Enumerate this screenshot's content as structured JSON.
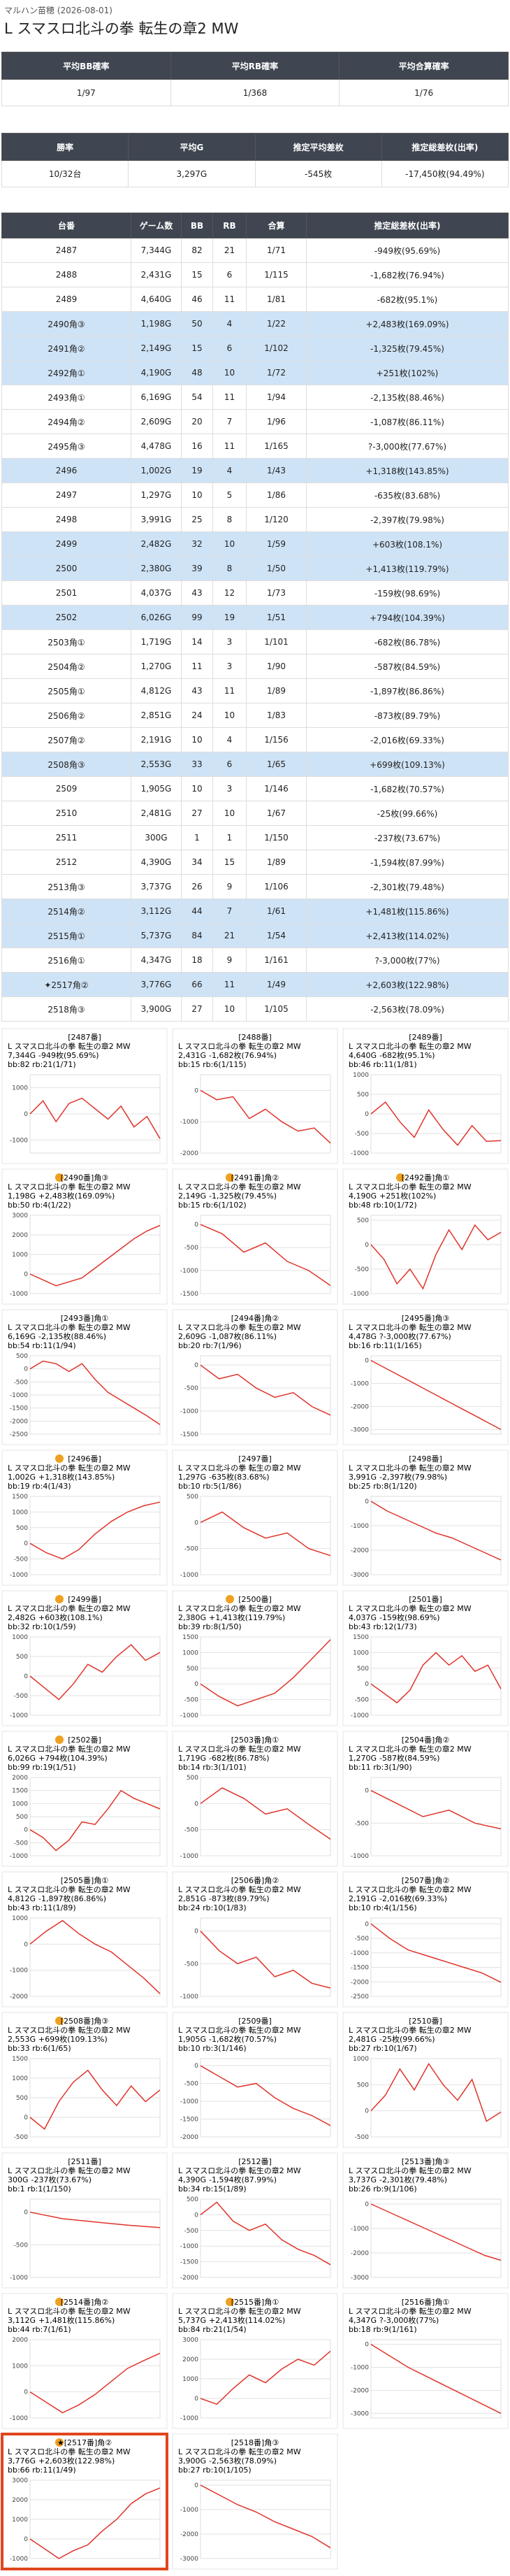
{
  "header": {
    "store": "マルハン苗穂 (2026-08-01)",
    "title": "L スマスロ北斗の拳 転生の章2 MW"
  },
  "table1": {
    "headers": [
      "平均BB確率",
      "平均RB確率",
      "平均合算確率"
    ],
    "row": [
      "1/97",
      "1/368",
      "1/76"
    ]
  },
  "table2": {
    "headers": [
      "勝率",
      "平均G",
      "推定平均差枚",
      "推定総差枚(出率)"
    ],
    "row": [
      "10/32台",
      "3,297G",
      "-545枚",
      "-17,450枚(94.49%)"
    ]
  },
  "table3": {
    "headers": [
      "台番",
      "ゲーム数",
      "BB",
      "RB",
      "合算",
      "推定総差枚(出率)"
    ],
    "rows": [
      {
        "cells": [
          "2487",
          "7,344G",
          82,
          21,
          "1/71",
          "-949枚(95.69%)"
        ],
        "highlight": false
      },
      {
        "cells": [
          "2488",
          "2,431G",
          15,
          6,
          "1/115",
          "-1,682枚(76.94%)"
        ],
        "highlight": false
      },
      {
        "cells": [
          "2489",
          "4,640G",
          46,
          11,
          "1/81",
          "-682枚(95.1%)"
        ],
        "highlight": false
      },
      {
        "cells": [
          "2490角③",
          "1,198G",
          50,
          4,
          "1/22",
          "+2,483枚(169.09%)"
        ],
        "highlight": true
      },
      {
        "cells": [
          "2491角②",
          "2,149G",
          15,
          6,
          "1/102",
          "-1,325枚(79.45%)"
        ],
        "highlight": true
      },
      {
        "cells": [
          "2492角①",
          "4,190G",
          48,
          10,
          "1/72",
          "+251枚(102%)"
        ],
        "highlight": true
      },
      {
        "cells": [
          "2493角①",
          "6,169G",
          54,
          11,
          "1/94",
          "-2,135枚(88.46%)"
        ],
        "highlight": false
      },
      {
        "cells": [
          "2494角②",
          "2,609G",
          20,
          7,
          "1/96",
          "-1,087枚(86.11%)"
        ],
        "highlight": false
      },
      {
        "cells": [
          "2495角③",
          "4,478G",
          16,
          11,
          "1/165",
          "?-3,000枚(77.67%)"
        ],
        "highlight": false
      },
      {
        "cells": [
          "2496",
          "1,002G",
          19,
          4,
          "1/43",
          "+1,318枚(143.85%)"
        ],
        "highlight": true
      },
      {
        "cells": [
          "2497",
          "1,297G",
          10,
          5,
          "1/86",
          "-635枚(83.68%)"
        ],
        "highlight": false
      },
      {
        "cells": [
          "2498",
          "3,991G",
          25,
          8,
          "1/120",
          "-2,397枚(79.98%)"
        ],
        "highlight": false
      },
      {
        "cells": [
          "2499",
          "2,482G",
          32,
          10,
          "1/59",
          "+603枚(108.1%)"
        ],
        "highlight": true
      },
      {
        "cells": [
          "2500",
          "2,380G",
          39,
          8,
          "1/50",
          "+1,413枚(119.79%)"
        ],
        "highlight": true
      },
      {
        "cells": [
          "2501",
          "4,037G",
          43,
          12,
          "1/73",
          "-159枚(98.69%)"
        ],
        "highlight": false
      },
      {
        "cells": [
          "2502",
          "6,026G",
          99,
          19,
          "1/51",
          "+794枚(104.39%)"
        ],
        "highlight": true
      },
      {
        "cells": [
          "2503角①",
          "1,719G",
          14,
          3,
          "1/101",
          "-682枚(86.78%)"
        ],
        "highlight": false
      },
      {
        "cells": [
          "2504角②",
          "1,270G",
          11,
          3,
          "1/90",
          "-587枚(84.59%)"
        ],
        "highlight": false
      },
      {
        "cells": [
          "2505角①",
          "4,812G",
          43,
          11,
          "1/89",
          "-1,897枚(86.86%)"
        ],
        "highlight": false
      },
      {
        "cells": [
          "2506角②",
          "2,851G",
          24,
          10,
          "1/83",
          "-873枚(89.79%)"
        ],
        "highlight": false
      },
      {
        "cells": [
          "2507角②",
          "2,191G",
          10,
          4,
          "1/156",
          "-2,016枚(69.33%)"
        ],
        "highlight": false
      },
      {
        "cells": [
          "2508角③",
          "2,553G",
          33,
          6,
          "1/65",
          "+699枚(109.13%)"
        ],
        "highlight": true
      },
      {
        "cells": [
          "2509",
          "1,905G",
          10,
          3,
          "1/146",
          "-1,682枚(70.57%)"
        ],
        "highlight": false
      },
      {
        "cells": [
          "2510",
          "2,481G",
          27,
          10,
          "1/67",
          "-25枚(99.66%)"
        ],
        "highlight": false
      },
      {
        "cells": [
          "2511",
          "300G",
          1,
          1,
          "1/150",
          "-237枚(73.67%)"
        ],
        "highlight": false
      },
      {
        "cells": [
          "2512",
          "4,390G",
          34,
          15,
          "1/89",
          "-1,594枚(87.99%)"
        ],
        "highlight": false
      },
      {
        "cells": [
          "2513角③",
          "3,737G",
          26,
          9,
          "1/106",
          "-2,301枚(79.48%)"
        ],
        "highlight": false
      },
      {
        "cells": [
          "2514角②",
          "3,112G",
          44,
          7,
          "1/61",
          "+1,481枚(115.86%)"
        ],
        "highlight": true
      },
      {
        "cells": [
          "2515角①",
          "5,737G",
          84,
          21,
          "1/54",
          "+2,413枚(114.02%)"
        ],
        "highlight": true
      },
      {
        "cells": [
          "2516角①",
          "4,347G",
          18,
          9,
          "1/161",
          "?-3,000枚(77%)"
        ],
        "highlight": false
      },
      {
        "cells": [
          "✦2517角②",
          "3,776G",
          66,
          11,
          "1/49",
          "+2,603枚(122.98%)"
        ],
        "highlight": true
      },
      {
        "cells": [
          "2518角③",
          "3,900G",
          27,
          10,
          "1/105",
          "-2,563枚(78.09%)"
        ],
        "highlight": false
      }
    ]
  },
  "cards": [
    {
      "label": "[2487番]",
      "stats": "bb:82 rb:21(1/71)",
      "ylim": [
        -1500,
        1500
      ],
      "yticks": [
        1000,
        0,
        -1000
      ],
      "values": [
        0,
        500,
        -300,
        400,
        600,
        200,
        -200,
        300,
        -500,
        -100,
        -949
      ]
    },
    {
      "label": "[2488番]",
      "stats": "bb:15 rb:6(1/115)",
      "ylim": [
        -2000,
        500
      ],
      "yticks": [
        0,
        -1000,
        -2000
      ],
      "values": [
        0,
        -300,
        -200,
        -900,
        -600,
        -1000,
        -1300,
        -1200,
        -1682
      ]
    },
    {
      "label": "[2489番]",
      "stats": "bb:46 rb:11(1/81)",
      "ylim": [
        -1000,
        1000
      ],
      "yticks": [
        1000,
        500,
        0,
        -500,
        -1000
      ],
      "values": [
        0,
        300,
        -200,
        -600,
        100,
        -400,
        -800,
        -300,
        -700,
        -682
      ]
    },
    {
      "label": "[2490番]角③",
      "stats": "bb:50 rb:4(1/22)",
      "ylim": [
        -1000,
        3000
      ],
      "yticks": [
        3000,
        2000,
        1000,
        0,
        -1000
      ],
      "values": [
        0,
        -300,
        -600,
        -400,
        -200,
        300,
        800,
        1300,
        1800,
        2200,
        2483
      ]
    },
    {
      "label": "[2491番]角②",
      "stats": "bb:15 rb:6(1/102)",
      "ylim": [
        -1500,
        200
      ],
      "yticks": [
        0,
        -500,
        -1000,
        -1500
      ],
      "values": [
        0,
        -200,
        -600,
        -400,
        -800,
        -1000,
        -1325
      ]
    },
    {
      "label": "[2492番]角①",
      "stats": "bb:48 rb:10(1/72)",
      "ylim": [
        -1000,
        600
      ],
      "yticks": [
        500,
        0,
        -500,
        -1000
      ],
      "values": [
        0,
        -300,
        -800,
        -500,
        -900,
        -200,
        300,
        -100,
        400,
        100,
        251
      ]
    },
    {
      "label": "[2493番]角①",
      "stats": "bb:54 rb:11(1/94)",
      "ylim": [
        -2500,
        500
      ],
      "yticks": [
        500,
        0,
        -500,
        -1000,
        -1500,
        -2000,
        -2500
      ],
      "values": [
        0,
        300,
        200,
        -100,
        200,
        -400,
        -900,
        -1200,
        -1500,
        -1800,
        -2135
      ]
    },
    {
      "label": "[2494番]角②",
      "stats": "bb:20 rb:7(1/96)",
      "ylim": [
        -1500,
        200
      ],
      "yticks": [
        0,
        -500,
        -1000,
        -1500
      ],
      "values": [
        0,
        -300,
        -200,
        -500,
        -700,
        -600,
        -900,
        -1087
      ]
    },
    {
      "label": "[2495番]角③",
      "stats": "bb:16 rb:11(1/165)",
      "ylim": [
        -3200,
        200
      ],
      "yticks": [
        0,
        -1000,
        -2000,
        -3000
      ],
      "values": [
        0,
        -300,
        -600,
        -900,
        -1200,
        -1500,
        -1800,
        -2100,
        -2400,
        -2700,
        -3000
      ]
    },
    {
      "label": "[2496番]",
      "stats": "bb:19 rb:4(1/43)",
      "ylim": [
        -1000,
        1500
      ],
      "yticks": [
        1500,
        1000,
        500,
        0,
        -500,
        -1000
      ],
      "values": [
        0,
        -300,
        -500,
        -200,
        300,
        700,
        1000,
        1200,
        1318
      ]
    },
    {
      "label": "[2497番]",
      "stats": "bb:10 rb:5(1/86)",
      "ylim": [
        -1000,
        500
      ],
      "yticks": [
        500,
        0,
        -500,
        -1000
      ],
      "values": [
        0,
        200,
        -100,
        -300,
        -200,
        -500,
        -635
      ]
    },
    {
      "label": "[2498番]",
      "stats": "bb:25 rb:8(1/120)",
      "ylim": [
        -3000,
        200
      ],
      "yticks": [
        0,
        -1000,
        -2000,
        -3000
      ],
      "values": [
        0,
        -400,
        -700,
        -1000,
        -1300,
        -1500,
        -1800,
        -2100,
        -2397
      ]
    },
    {
      "label": "[2499番]",
      "stats": "bb:32 rb:10(1/59)",
      "ylim": [
        -1000,
        1000
      ],
      "yticks": [
        1000,
        500,
        0,
        -500,
        -1000
      ],
      "values": [
        0,
        -300,
        -600,
        -200,
        300,
        100,
        500,
        800,
        400,
        603
      ]
    },
    {
      "label": "[2500番]",
      "stats": "bb:39 rb:8(1/50)",
      "ylim": [
        -1000,
        1500
      ],
      "yticks": [
        1500,
        1000,
        500,
        0,
        -500,
        -1000
      ],
      "values": [
        0,
        -400,
        -700,
        -500,
        -300,
        200,
        800,
        1413
      ]
    },
    {
      "label": "[2501番]",
      "stats": "bb:43 rb:12(1/73)",
      "ylim": [
        -1000,
        1500
      ],
      "yticks": [
        1500,
        1000,
        500,
        0,
        -500,
        -1000
      ],
      "values": [
        0,
        -300,
        -600,
        -200,
        600,
        1000,
        600,
        900,
        400,
        600,
        -159
      ]
    },
    {
      "label": "[2502番]",
      "stats": "bb:99 rb:19(1/51)",
      "ylim": [
        -1000,
        2000
      ],
      "yticks": [
        2000,
        1500,
        1000,
        500,
        0,
        -500,
        -1000
      ],
      "values": [
        0,
        -300,
        -800,
        -400,
        300,
        200,
        800,
        1500,
        1200,
        1000,
        794
      ]
    },
    {
      "label": "[2503番]角①",
      "stats": "bb:14 rb:3(1/101)",
      "ylim": [
        -1000,
        500
      ],
      "yticks": [
        500,
        0,
        -500,
        -1000
      ],
      "values": [
        0,
        300,
        100,
        -200,
        -100,
        -400,
        -682
      ]
    },
    {
      "label": "[2504番]角②",
      "stats": "bb:11 rb:3(1/90)",
      "ylim": [
        -1000,
        200
      ],
      "yticks": [
        0,
        -500,
        -1000
      ],
      "values": [
        0,
        -200,
        -400,
        -300,
        -500,
        -587
      ]
    },
    {
      "label": "[2505番]角①",
      "stats": "bb:43 rb:11(1/89)",
      "ylim": [
        -2000,
        1000
      ],
      "yticks": [
        1000,
        0,
        -1000,
        -2000
      ],
      "values": [
        0,
        500,
        900,
        400,
        0,
        -300,
        -800,
        -1300,
        -1897
      ]
    },
    {
      "label": "[2506番]角②",
      "stats": "bb:24 rb:10(1/83)",
      "ylim": [
        -1000,
        200
      ],
      "yticks": [
        0,
        -500,
        -1000
      ],
      "values": [
        0,
        -300,
        -500,
        -400,
        -700,
        -600,
        -800,
        -873
      ]
    },
    {
      "label": "[2507番]角②",
      "stats": "bb:10 rb:4(1/156)",
      "ylim": [
        -2500,
        200
      ],
      "yticks": [
        0,
        -500,
        -1000,
        -1500,
        -2000,
        -2500
      ],
      "values": [
        0,
        -500,
        -900,
        -1100,
        -1300,
        -1500,
        -1700,
        -2016
      ]
    },
    {
      "label": "[2508番]角③",
      "stats": "bb:33 rb:6(1/65)",
      "ylim": [
        -500,
        1500
      ],
      "yticks": [
        1500,
        1000,
        500,
        0,
        -500
      ],
      "values": [
        0,
        -300,
        400,
        900,
        1200,
        700,
        300,
        800,
        400,
        699
      ]
    },
    {
      "label": "[2509番]",
      "stats": "bb:10 rb:3(1/146)",
      "ylim": [
        -2000,
        200
      ],
      "yticks": [
        0,
        -500,
        -1000,
        -1500,
        -2000
      ],
      "values": [
        0,
        -300,
        -600,
        -500,
        -900,
        -1200,
        -1400,
        -1682
      ]
    },
    {
      "label": "[2510番]",
      "stats": "bb:27 rb:10(1/67)",
      "ylim": [
        -500,
        1000
      ],
      "yticks": [
        1000,
        500,
        0,
        -500
      ],
      "values": [
        0,
        300,
        800,
        400,
        900,
        500,
        200,
        600,
        -200,
        -25
      ]
    },
    {
      "label": "[2511番]",
      "stats": "bb:1 rb:1(1/150)",
      "ylim": [
        -1000,
        200
      ],
      "yticks": [
        0,
        -500,
        -1000
      ],
      "values": [
        0,
        -100,
        -150,
        -200,
        -237
      ]
    },
    {
      "label": "[2512番]",
      "stats": "bb:34 rb:15(1/89)",
      "ylim": [
        -2000,
        500
      ],
      "yticks": [
        500,
        0,
        -500,
        -1000,
        -1500,
        -2000
      ],
      "values": [
        0,
        400,
        -200,
        -500,
        -300,
        -800,
        -1100,
        -1300,
        -1594
      ]
    },
    {
      "label": "[2513番]角③",
      "stats": "bb:26 rb:9(1/106)",
      "ylim": [
        -3000,
        200
      ],
      "yticks": [
        0,
        -1000,
        -2000,
        -3000
      ],
      "values": [
        0,
        -300,
        -600,
        -900,
        -1200,
        -1500,
        -1800,
        -2100,
        -2301
      ]
    },
    {
      "label": "[2514番]角②",
      "stats": "bb:44 rb:7(1/61)",
      "ylim": [
        -1000,
        2000
      ],
      "yticks": [
        2000,
        1000,
        0,
        -1000
      ],
      "values": [
        0,
        -400,
        -800,
        -500,
        -100,
        400,
        900,
        1200,
        1481
      ]
    },
    {
      "label": "[2515番]角①",
      "stats": "bb:84 rb:21(1/54)",
      "ylim": [
        -1000,
        3000
      ],
      "yticks": [
        3000,
        2000,
        1000,
        0,
        -1000
      ],
      "values": [
        0,
        -300,
        500,
        1200,
        800,
        1500,
        2000,
        1700,
        2413
      ]
    },
    {
      "label": "[2516番]角①",
      "stats": "bb:18 rb:9(1/161)",
      "ylim": [
        -3200,
        200
      ],
      "yticks": [
        0,
        -1000,
        -2000,
        -3000
      ],
      "values": [
        0,
        -500,
        -1000,
        -1400,
        -1800,
        -2200,
        -2600,
        -3000
      ]
    },
    {
      "label": "★[2517番]角②",
      "stats": "bb:66 rb:11(1/49)",
      "ylim": [
        -1000,
        3000
      ],
      "yticks": [
        3000,
        2000,
        1000,
        0,
        -1000
      ],
      "values": [
        0,
        -500,
        -1000,
        -600,
        -300,
        400,
        1000,
        1800,
        2300,
        2603
      ],
      "selected": true
    },
    {
      "label": "[2518番]角③",
      "stats": "bb:27 rb:10(1/105)",
      "ylim": [
        -3000,
        200
      ],
      "yticks": [
        0,
        -1000,
        -2000,
        -3000
      ],
      "values": [
        0,
        -400,
        -800,
        -1100,
        -1500,
        -1800,
        -2100,
        -2563
      ]
    }
  ]
}
